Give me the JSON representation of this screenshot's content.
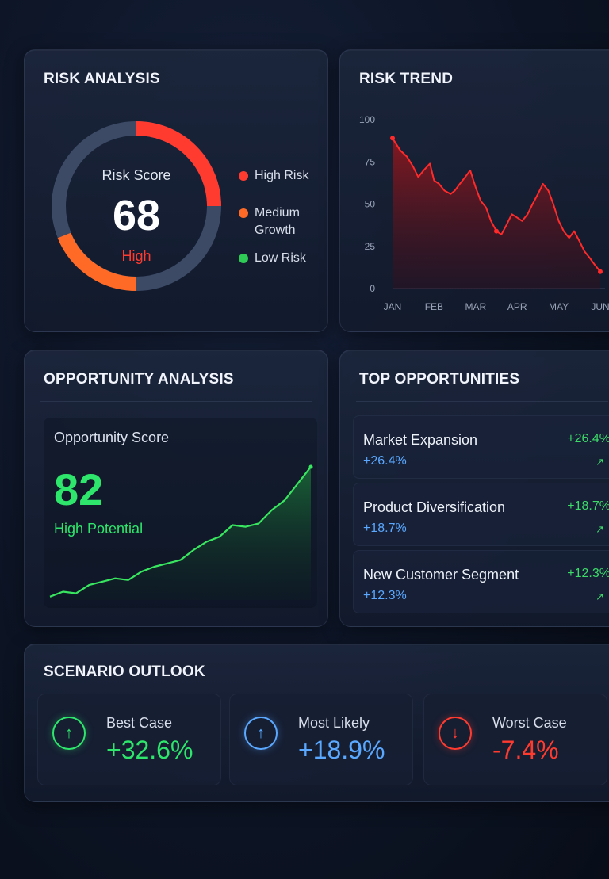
{
  "risk_analysis": {
    "title": "RISK ANALYSIS",
    "score_label": "Risk Score",
    "score": "68",
    "level": "High",
    "legend": [
      {
        "label": "High Risk",
        "color": "#ff3b30"
      },
      {
        "label": "Medium Growth",
        "color": "#ff6a26"
      },
      {
        "label": "Low Risk",
        "color": "#2ecc55"
      }
    ]
  },
  "risk_trend": {
    "title": "RISK TREND"
  },
  "opportunity_analysis": {
    "title": "OPPORTUNITY ANALYSIS",
    "score_label": "Opportunity Score",
    "score": "82",
    "potential": "High Potential"
  },
  "top_opportunities": {
    "title": "TOP OPPORTUNITIES",
    "items": [
      {
        "name": "Market Expansion",
        "change": "+26.4%",
        "sub": "+26.4%"
      },
      {
        "name": "Product Diversification",
        "change": "+18.7%",
        "sub": "+18.7%"
      },
      {
        "name": "New Customer Segment",
        "change": "+12.3%",
        "sub": "+12.3%"
      }
    ]
  },
  "scenario_outlook": {
    "title": "SCENARIO OUTLOOK",
    "cards": [
      {
        "label": "Best Case",
        "value": "+32.6%",
        "direction": "up",
        "color": "#2ee66b",
        "icon": "arrow-up-icon"
      },
      {
        "label": "Most Likely",
        "value": "+18.9%",
        "direction": "up",
        "color": "#5aa8ff",
        "icon": "arrow-up-icon"
      },
      {
        "label": "Worst Case",
        "value": "-7.4%",
        "direction": "down",
        "color": "#ff3b30",
        "icon": "arrow-down-icon"
      }
    ]
  },
  "chart_data": [
    {
      "type": "area",
      "categories": [
        "JAN",
        "FEB",
        "MAR",
        "APR",
        "MAY",
        "JUN"
      ],
      "yticks": [
        0,
        25,
        50,
        75,
        100
      ],
      "ylim": [
        0,
        100
      ],
      "x": [
        0,
        0.18,
        0.35,
        0.5,
        0.62,
        0.75,
        0.9,
        1.0,
        1.12,
        1.25,
        1.4,
        1.5,
        1.62,
        1.75,
        1.87,
        2.0,
        2.12,
        2.25,
        2.37,
        2.5,
        2.62,
        2.75,
        2.87,
        3.0,
        3.12,
        3.25,
        3.37,
        3.5,
        3.62,
        3.75,
        3.87,
        4.0,
        4.12,
        4.25,
        4.37,
        4.5,
        4.62,
        4.75,
        4.87,
        5.0
      ],
      "values": [
        89,
        82,
        78,
        72,
        66,
        70,
        74,
        64,
        62,
        58,
        56,
        58,
        62,
        66,
        70,
        60,
        52,
        48,
        40,
        34,
        32,
        38,
        44,
        42,
        40,
        44,
        50,
        56,
        62,
        58,
        50,
        40,
        34,
        30,
        34,
        28,
        22,
        18,
        14,
        10
      ],
      "grid": false
    },
    {
      "type": "area",
      "x": [
        0,
        0.05,
        0.1,
        0.15,
        0.2,
        0.25,
        0.3,
        0.35,
        0.4,
        0.45,
        0.5,
        0.55,
        0.6,
        0.65,
        0.7,
        0.75,
        0.8,
        0.85,
        0.9,
        0.95,
        1.0
      ],
      "values": [
        2,
        5,
        4,
        9,
        11,
        13,
        12,
        17,
        20,
        22,
        24,
        30,
        35,
        38,
        45,
        44,
        46,
        54,
        60,
        70,
        80
      ],
      "grid": false
    }
  ]
}
